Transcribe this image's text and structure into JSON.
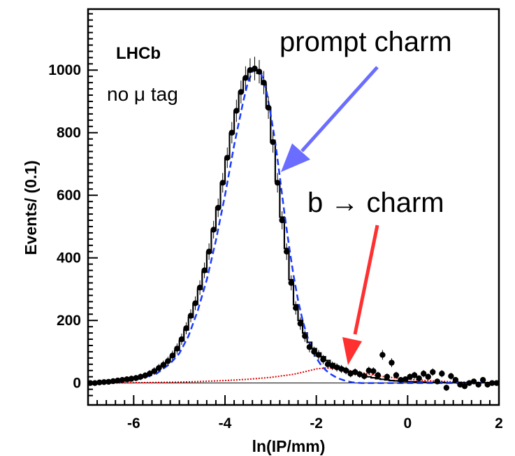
{
  "chart_data": {
    "type": "line",
    "xlabel": "ln(IP/mm)",
    "ylabel": "Events/ (0.1)",
    "xlim": [
      -7.0,
      2.0
    ],
    "ylim": [
      -70,
      1195
    ],
    "x_ticks": [
      -6,
      -4,
      -2,
      0,
      2
    ],
    "y_ticks": [
      0,
      200,
      400,
      600,
      800,
      1000
    ],
    "grid": false,
    "legend": "none",
    "annotations": {
      "experiment": "LHCb",
      "selection": "no μ tag",
      "prompt_label": "prompt charm",
      "btocharm_label": "b → charm"
    },
    "series": [
      {
        "style": "points-with-error-bars",
        "color": "#000000",
        "x": [
          -6.95,
          -6.85,
          -6.75,
          -6.65,
          -6.55,
          -6.45,
          -6.35,
          -6.25,
          -6.15,
          -6.05,
          -5.95,
          -5.85,
          -5.75,
          -5.65,
          -5.55,
          -5.45,
          -5.35,
          -5.25,
          -5.15,
          -5.05,
          -4.95,
          -4.85,
          -4.75,
          -4.65,
          -4.55,
          -4.45,
          -4.35,
          -4.25,
          -4.15,
          -4.05,
          -3.95,
          -3.85,
          -3.75,
          -3.65,
          -3.55,
          -3.45,
          -3.35,
          -3.25,
          -3.15,
          -3.05,
          -2.95,
          -2.85,
          -2.75,
          -2.65,
          -2.55,
          -2.45,
          -2.35,
          -2.25,
          -2.15,
          -2.05,
          -1.95,
          -1.85,
          -1.75,
          -1.65,
          -1.55,
          -1.45,
          -1.35,
          -1.25,
          -1.15,
          -1.05,
          -0.95,
          -0.85,
          -0.75,
          -0.65,
          -0.55,
          -0.45,
          -0.35,
          -0.25,
          -0.15,
          -0.05,
          0.05,
          0.15,
          0.25,
          0.35,
          0.45,
          0.55,
          0.65,
          0.75,
          0.85,
          0.95,
          1.05,
          1.15,
          1.25,
          1.35,
          1.45,
          1.55,
          1.65,
          1.75,
          1.85,
          1.95
        ],
        "y": [
          0,
          0,
          2,
          3,
          4,
          6,
          8,
          10,
          12,
          14,
          16,
          20,
          24,
          30,
          38,
          48,
          58,
          70,
          88,
          110,
          140,
          175,
          215,
          255,
          305,
          360,
          420,
          490,
          560,
          640,
          720,
          800,
          870,
          930,
          975,
          1000,
          1005,
          995,
          960,
          880,
          770,
          640,
          520,
          420,
          320,
          240,
          190,
          150,
          115,
          100,
          90,
          75,
          60,
          55,
          50,
          45,
          40,
          30,
          35,
          28,
          22,
          40,
          38,
          25,
          90,
          20,
          65,
          25,
          10,
          12,
          20,
          25,
          15,
          30,
          20,
          35,
          5,
          30,
          -15,
          22,
          10,
          -5,
          -10,
          0,
          5,
          -5,
          10,
          -5,
          0,
          0
        ]
      },
      {
        "style": "histogram-fit",
        "color": "#000000",
        "x": [
          -6.95,
          -6.85,
          -6.75,
          -6.65,
          -6.55,
          -6.45,
          -6.35,
          -6.25,
          -6.15,
          -6.05,
          -5.95,
          -5.85,
          -5.75,
          -5.65,
          -5.55,
          -5.45,
          -5.35,
          -5.25,
          -5.15,
          -5.05,
          -4.95,
          -4.85,
          -4.75,
          -4.65,
          -4.55,
          -4.45,
          -4.35,
          -4.25,
          -4.15,
          -4.05,
          -3.95,
          -3.85,
          -3.75,
          -3.65,
          -3.55,
          -3.45,
          -3.35,
          -3.25,
          -3.15,
          -3.05,
          -2.95,
          -2.85,
          -2.75,
          -2.65,
          -2.55,
          -2.45,
          -2.35,
          -2.25,
          -2.15,
          -2.05,
          -1.95,
          -1.85,
          -1.75,
          -1.65,
          -1.55,
          -1.45,
          -1.35,
          -1.25,
          -1.15,
          -1.05,
          -0.95,
          -0.85,
          -0.75,
          -0.65,
          -0.55,
          -0.45,
          -0.35,
          -0.25,
          -0.15,
          -0.05,
          0.05,
          0.15,
          0.25,
          0.35,
          0.45,
          0.55,
          0.65,
          0.75,
          0.85,
          0.95,
          1.05,
          1.15,
          1.25,
          1.35,
          1.45,
          1.55,
          1.65,
          1.75,
          1.85,
          1.95
        ],
        "y": [
          1,
          1,
          2,
          3,
          4,
          6,
          8,
          10,
          12,
          14,
          17,
          20,
          25,
          31,
          38,
          47,
          57,
          69,
          85,
          105,
          135,
          170,
          210,
          252,
          300,
          355,
          418,
          488,
          560,
          638,
          718,
          798,
          868,
          930,
          972,
          998,
          1000,
          990,
          955,
          880,
          770,
          645,
          530,
          430,
          330,
          250,
          200,
          160,
          130,
          110,
          96,
          84,
          72,
          62,
          54,
          48,
          42,
          37,
          32,
          28,
          24,
          20,
          17,
          14,
          12,
          10,
          8,
          7,
          6,
          5,
          4,
          4,
          3,
          3,
          2,
          2,
          2,
          2,
          1,
          1,
          1,
          1,
          1,
          1,
          1,
          1,
          1,
          1,
          1,
          1
        ]
      },
      {
        "style": "dashed-line",
        "color": "#1a3cff",
        "x": [
          -7.0,
          -6.5,
          -6.0,
          -5.5,
          -5.2,
          -5.0,
          -4.8,
          -4.6,
          -4.4,
          -4.2,
          -4.0,
          -3.8,
          -3.6,
          -3.5,
          -3.4,
          -3.3,
          -3.2,
          -3.1,
          -3.0,
          -2.9,
          -2.8,
          -2.7,
          -2.6,
          -2.5,
          -2.4,
          -2.3,
          -2.2,
          -2.1,
          -2.0,
          -1.9,
          -1.8,
          -1.7,
          -1.6,
          -1.5,
          -1.4,
          -1.3,
          -1.2,
          -1.0,
          -0.8,
          -0.5,
          0.0,
          0.5,
          1.0,
          2.0
        ],
        "y": [
          0,
          2,
          8,
          30,
          62,
          95,
          150,
          230,
          330,
          455,
          600,
          760,
          900,
          960,
          995,
          1000,
          985,
          940,
          860,
          770,
          660,
          545,
          440,
          345,
          265,
          200,
          150,
          110,
          80,
          58,
          42,
          30,
          21,
          14,
          9,
          5,
          2,
          0,
          0,
          0,
          0,
          0,
          0,
          0
        ]
      },
      {
        "style": "dotted-histogram",
        "color": "#e00000",
        "x": [
          -7.0,
          -6.5,
          -6.0,
          -5.5,
          -5.0,
          -4.5,
          -4.0,
          -3.5,
          -3.0,
          -2.5,
          -2.2,
          -2.0,
          -1.8,
          -1.6,
          -1.4,
          -1.2,
          -1.0,
          -0.8,
          -0.5,
          0.0,
          0.5,
          1.0,
          1.5,
          2.0
        ],
        "y": [
          0,
          0,
          1,
          2,
          3,
          5,
          8,
          12,
          18,
          28,
          38,
          45,
          48,
          47,
          43,
          38,
          33,
          27,
          20,
          12,
          7,
          4,
          2,
          1
        ]
      }
    ]
  }
}
